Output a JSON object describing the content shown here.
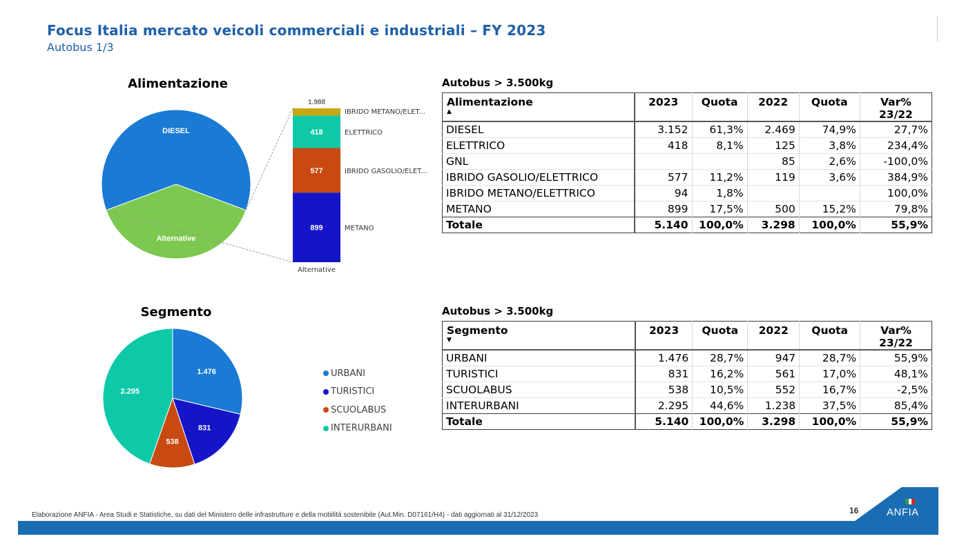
{
  "header": {
    "title": "Focus Italia mercato veicoli commerciali e industriali – FY 2023",
    "subtitle": "Autobus 1/3"
  },
  "chart_alimentazione": {
    "title": "Alimentazione",
    "chart_data": {
      "type": "pie",
      "title": "Alimentazione",
      "slices": [
        {
          "label": "DIESEL",
          "value": 3152,
          "color": "#1a7ad4"
        },
        {
          "label": "Alternative",
          "value": 1988,
          "color": "#7cc850"
        }
      ],
      "breakdown": {
        "type": "bar",
        "category": "Alternative",
        "total_label": "1.988",
        "segments": [
          {
            "label": "METANO",
            "value": 899,
            "value_label": "899",
            "color": "#1515c8"
          },
          {
            "label": "IBRIDO GASOLIO/ELET...",
            "value": 577,
            "value_label": "577",
            "color": "#c84a12"
          },
          {
            "label": "ELETTRICO",
            "value": 418,
            "value_label": "418",
            "color": "#0ec9a8"
          },
          {
            "label": "IBRIDO METANO/ELET...",
            "value": 94,
            "value_label": "",
            "color": "#c9a614"
          }
        ]
      }
    }
  },
  "chart_segmento": {
    "title": "Segmento",
    "chart_data": {
      "type": "pie",
      "title": "Segmento",
      "slices": [
        {
          "label": "URBANI",
          "value": 1476,
          "value_label": "1.476",
          "color": "#1a7ad4"
        },
        {
          "label": "TURISTICI",
          "value": 831,
          "value_label": "831",
          "color": "#1515c8"
        },
        {
          "label": "SCUOLABUS",
          "value": 538,
          "value_label": "538",
          "color": "#c84a12"
        },
        {
          "label": "INTERURBANI",
          "value": 2295,
          "value_label": "2.295",
          "color": "#0ec9a8"
        }
      ]
    },
    "legend": [
      "URBANI",
      "TURISTICI",
      "SCUOLABUS",
      "INTERURBANI"
    ]
  },
  "table1": {
    "caption": "Autobus > 3.500kg",
    "sort_icon": "sort-ascending-icon",
    "headers": [
      "Alimentazione",
      "2023",
      "Quota",
      "2022",
      "Quota",
      "Var% 23/22"
    ],
    "rows": [
      [
        "DIESEL",
        "3.152",
        "61,3%",
        "2.469",
        "74,9%",
        "27,7%"
      ],
      [
        "ELETTRICO",
        "418",
        "8,1%",
        "125",
        "3,8%",
        "234,4%"
      ],
      [
        "GNL",
        "",
        "",
        "85",
        "2,6%",
        "-100,0%"
      ],
      [
        "IBRIDO GASOLIO/ELETTRICO",
        "577",
        "11,2%",
        "119",
        "3,6%",
        "384,9%"
      ],
      [
        "IBRIDO METANO/ELETTRICO",
        "94",
        "1,8%",
        "",
        "",
        "100,0%"
      ],
      [
        "METANO",
        "899",
        "17,5%",
        "500",
        "15,2%",
        "79,8%"
      ]
    ],
    "total": [
      "Totale",
      "5.140",
      "100,0%",
      "3.298",
      "100,0%",
      "55,9%"
    ]
  },
  "table2": {
    "caption": "Autobus > 3.500kg",
    "sort_icon": "sort-descending-icon",
    "headers": [
      "Segmento",
      "2023",
      "Quota",
      "2022",
      "Quota",
      "Var% 23/22"
    ],
    "rows": [
      [
        "URBANI",
        "1.476",
        "28,7%",
        "947",
        "28,7%",
        "55,9%"
      ],
      [
        "TURISTICI",
        "831",
        "16,2%",
        "561",
        "17,0%",
        "48,1%"
      ],
      [
        "SCUOLABUS",
        "538",
        "10,5%",
        "552",
        "16,7%",
        "-2,5%"
      ],
      [
        "INTERURBANI",
        "2.295",
        "44,6%",
        "1.238",
        "37,5%",
        "85,4%"
      ]
    ],
    "total": [
      "Totale",
      "5.140",
      "100,0%",
      "3.298",
      "100,0%",
      "55,9%"
    ]
  },
  "footer": {
    "note": "Elaborazione ANFIA - Area Studi e Statistiche, su dati del Ministero delle infrastrutture e della mobilità sostenibile (Aut.Min. D07161/H4) - dati aggiornati al 31/12/2023",
    "page_number": "16",
    "logo_text": "ANFIA",
    "brand_color": "#1a6db3"
  }
}
